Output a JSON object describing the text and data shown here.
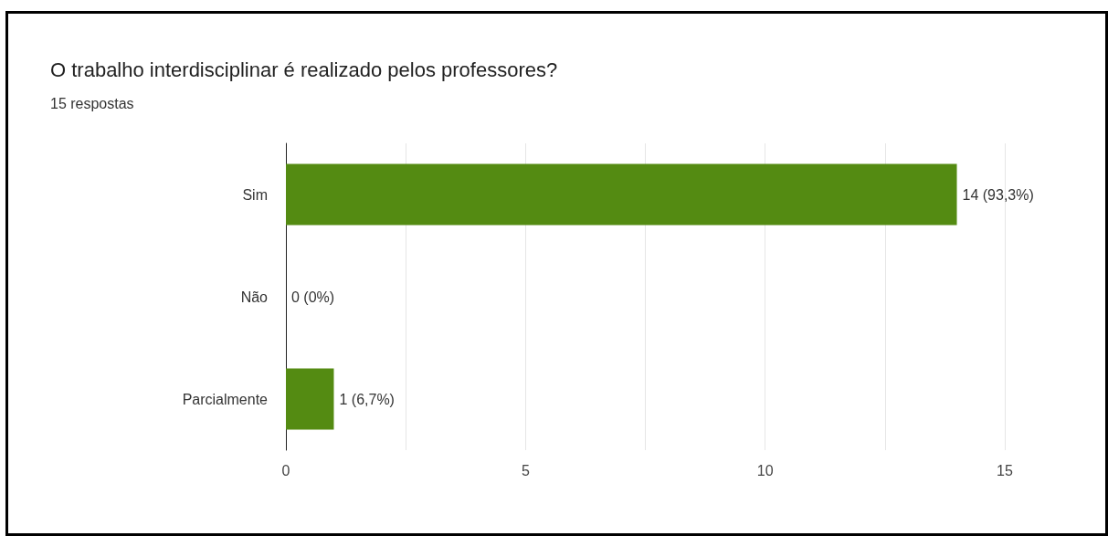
{
  "chart_data": {
    "type": "bar",
    "orientation": "horizontal",
    "title": "O trabalho interdisciplinar é realizado pelos professores?",
    "subtitle": "15 respostas",
    "categories": [
      "Sim",
      "Não",
      "Parcialmente"
    ],
    "values": [
      14,
      0,
      1
    ],
    "value_labels": [
      "14 (93,3%)",
      "0 (0%)",
      "1 (6,7%)"
    ],
    "color": "#548b12",
    "xlim": [
      0,
      15
    ],
    "xticks": [
      0,
      {
        "value": 2.5,
        "label": null
      },
      5,
      {
        "value": 7.5,
        "label": null
      },
      10,
      {
        "value": 12.5,
        "label": null
      },
      15
    ],
    "grid": "x"
  }
}
